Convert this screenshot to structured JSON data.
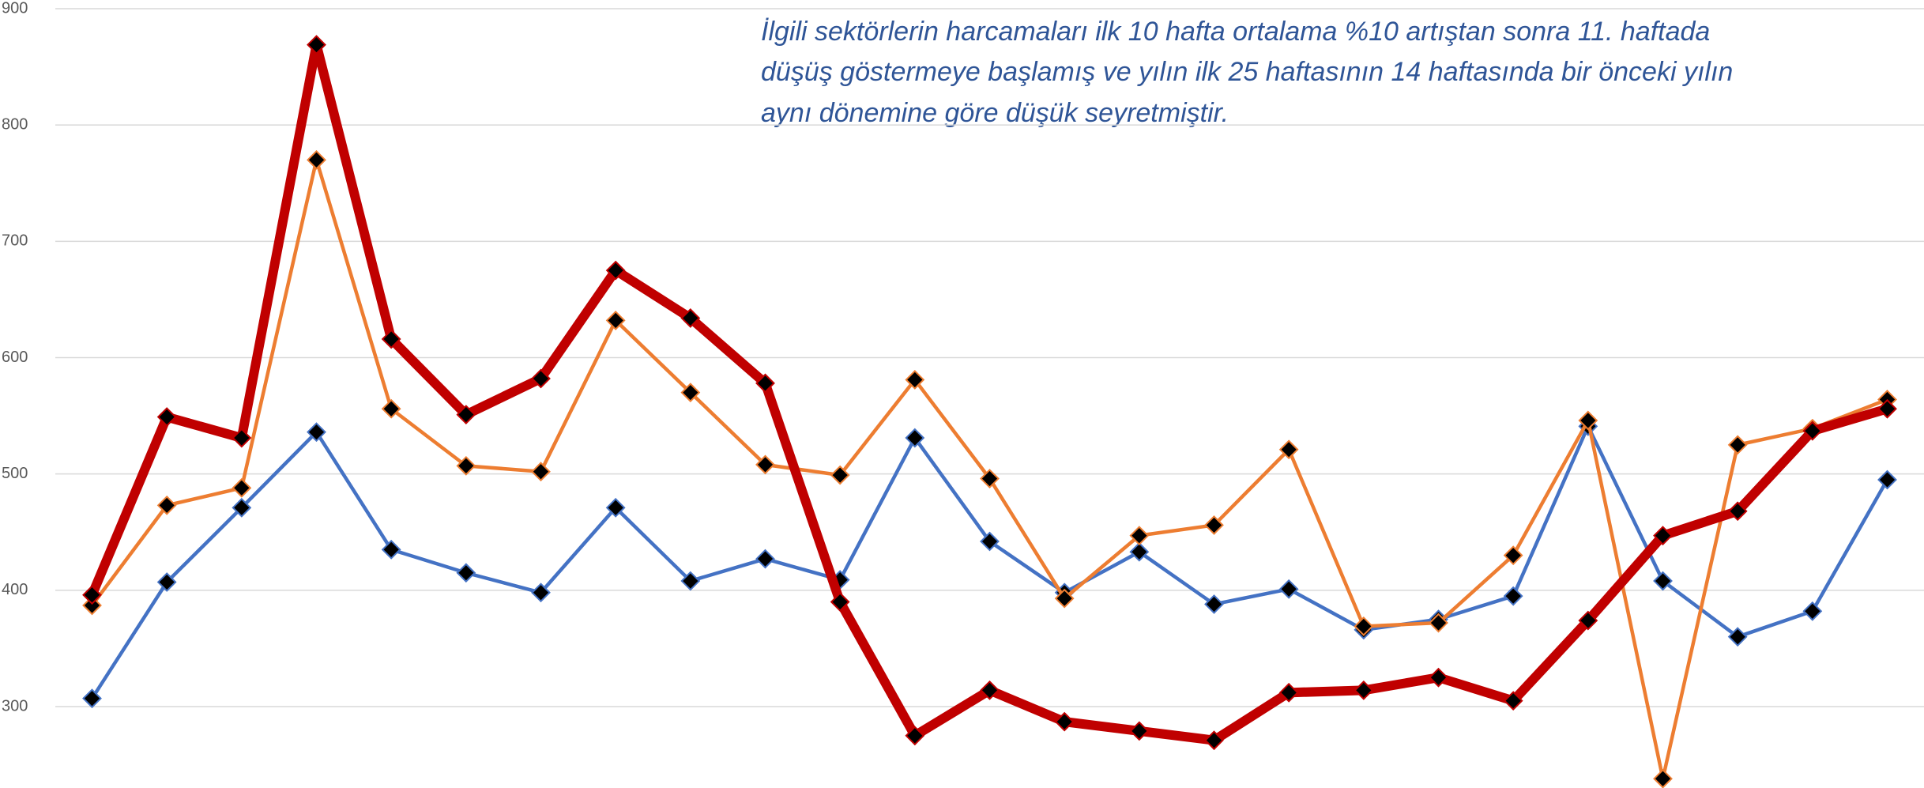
{
  "chart_data": {
    "type": "line",
    "annotation": [
      "İlgili sektörlerin harcamaları ilk 10 hafta ortalama %10 artıştan sonra 11. haftada",
      "düşüş göstermeye başlamış ve yılın ilk 25 haftasının 14 haftasında bir önceki yılın",
      "aynı dönemine göre düşük seyretmiştir."
    ],
    "categories": [
      null,
      null,
      null,
      null,
      null,
      null,
      null,
      null,
      null,
      null,
      null,
      null,
      null,
      null,
      null,
      null,
      null,
      null,
      null,
      null,
      null,
      null,
      null,
      null,
      null
    ],
    "series": [
      {
        "color": "#4472c4",
        "width": 4.5,
        "values": [
          307,
          407,
          471,
          536,
          435,
          415,
          398,
          471,
          408,
          427,
          409,
          531,
          442,
          398,
          433,
          388,
          401,
          366,
          375,
          395,
          541,
          408,
          360,
          382,
          495
        ]
      },
      {
        "color": "#ed7d31",
        "width": 4.5,
        "values": [
          387,
          473,
          488,
          770,
          556,
          507,
          502,
          632,
          570,
          508,
          499,
          581,
          496,
          393,
          447,
          456,
          521,
          369,
          372,
          430,
          546,
          238,
          525,
          539,
          564
        ]
      },
      {
        "color": "#c00000",
        "width": 12,
        "values": [
          396,
          549,
          531,
          869,
          616,
          551,
          582,
          675,
          634,
          578,
          390,
          275,
          314,
          287,
          279,
          271,
          312,
          314,
          325,
          305,
          374,
          447,
          468,
          537,
          556
        ]
      }
    ],
    "ylim": [
      230,
      900
    ],
    "yticks": [
      300,
      400,
      500,
      600,
      700,
      800,
      900
    ],
    "grid": true
  }
}
